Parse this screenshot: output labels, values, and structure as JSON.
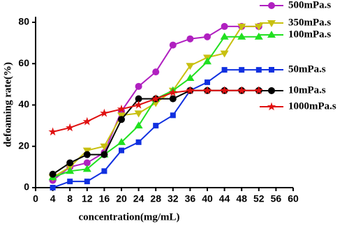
{
  "chart_data": {
    "type": "line",
    "x_label": "concentration(mg/mL)",
    "y_label": "defoaming rate(%)",
    "x": [
      4,
      8,
      12,
      16,
      20,
      24,
      28,
      32,
      36,
      40,
      44,
      48,
      52
    ],
    "xlim": [
      0,
      60
    ],
    "xticks": [
      0,
      4,
      8,
      12,
      16,
      20,
      24,
      28,
      32,
      36,
      40,
      44,
      48,
      52,
      56,
      60
    ],
    "ylim": [
      0,
      80
    ],
    "yticks": [
      0,
      20,
      40,
      60,
      80
    ],
    "series": [
      {
        "name": "500mPa.s",
        "color": "#b020c0",
        "marker": "circle",
        "values": [
          3.5,
          10,
          12,
          17,
          37,
          49,
          56,
          69,
          72,
          73,
          78,
          78,
          78
        ]
      },
      {
        "name": "350mPa.s",
        "color": "#c8c010",
        "marker": "triangle-down",
        "values": [
          5,
          10,
          18,
          20,
          35,
          36,
          41,
          47,
          59,
          63,
          65,
          78,
          78
        ]
      },
      {
        "name": "100mPa.s",
        "color": "#20e020",
        "marker": "triangle-up",
        "values": [
          5,
          8,
          9,
          16,
          22,
          30,
          43,
          47,
          53,
          61,
          73,
          73,
          73
        ]
      },
      {
        "name": "50mPa.s",
        "color": "#1030e0",
        "marker": "square",
        "values": [
          0,
          3,
          3,
          8,
          18,
          22,
          30,
          35,
          47,
          51,
          57,
          57,
          57
        ]
      },
      {
        "name": "10mPa.s",
        "color": "#000000",
        "marker": "circle",
        "values": [
          6.5,
          12,
          16,
          16,
          33,
          43,
          43,
          43,
          47,
          47,
          47,
          47,
          47
        ]
      },
      {
        "name": "1000mPa.s",
        "color": "#e01010",
        "marker": "star",
        "values": [
          27,
          29,
          32,
          36,
          38,
          40,
          43,
          46,
          47,
          47,
          47,
          47,
          47
        ]
      }
    ]
  }
}
